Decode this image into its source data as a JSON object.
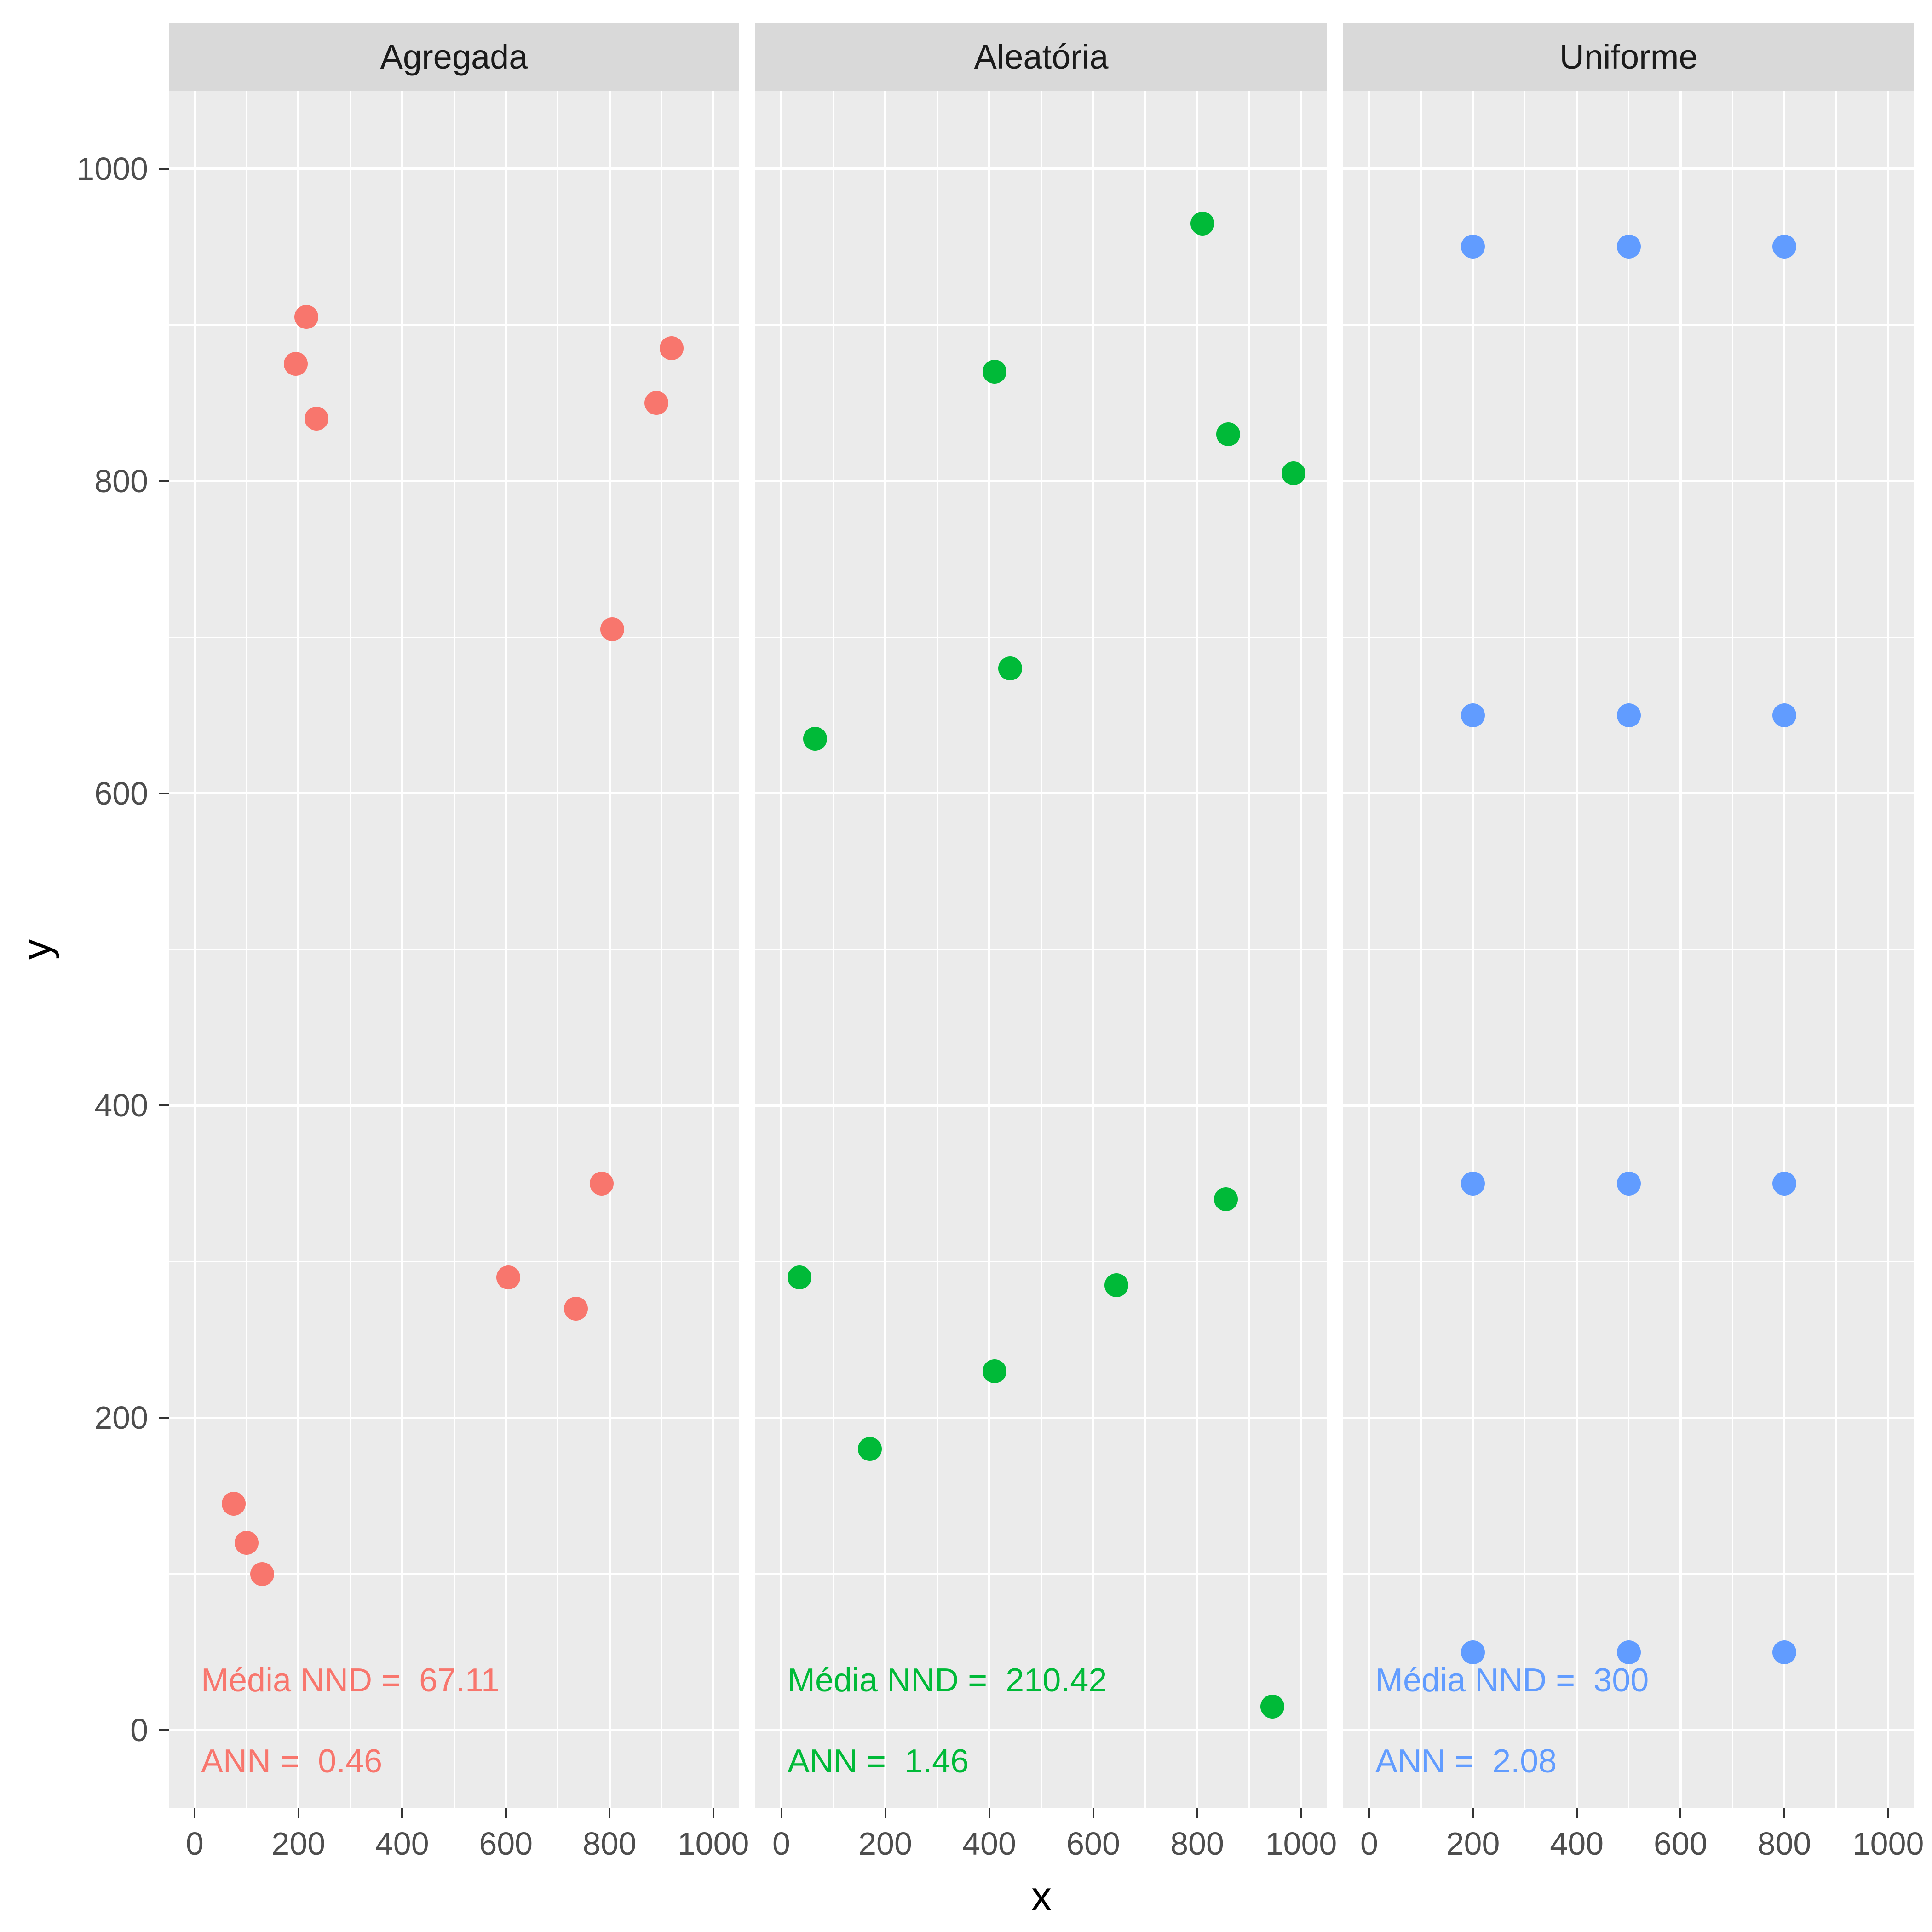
{
  "chart_data": {
    "type": "scatter",
    "xlabel": "x",
    "ylabel": "y",
    "x_ticks": [
      0,
      200,
      400,
      600,
      800,
      1000
    ],
    "y_ticks": [
      0,
      200,
      400,
      600,
      800,
      1000
    ],
    "x_minor_ticks": [
      100,
      300,
      500,
      700,
      900
    ],
    "y_minor_ticks": [
      100,
      300,
      500,
      700,
      900
    ],
    "x_domain": [
      -50,
      1050
    ],
    "y_domain": [
      -50,
      1050
    ],
    "grid": true,
    "legend": "none",
    "facets": [
      {
        "title": "Agregada",
        "color": "#F8766D",
        "nnd": "Média NND =  67.11",
        "ann": "ANN =  0.46",
        "points": [
          [
            215,
            905
          ],
          [
            195,
            875
          ],
          [
            235,
            840
          ],
          [
            920,
            885
          ],
          [
            890,
            850
          ],
          [
            805,
            705
          ],
          [
            785,
            350
          ],
          [
            605,
            290
          ],
          [
            735,
            270
          ],
          [
            75,
            145
          ],
          [
            100,
            120
          ],
          [
            130,
            100
          ]
        ]
      },
      {
        "title": "Aleatória",
        "color": "#00BA38",
        "nnd": "Média NND =  210.42",
        "ann": "ANN =  1.46",
        "points": [
          [
            810,
            965
          ],
          [
            410,
            870
          ],
          [
            860,
            830
          ],
          [
            985,
            805
          ],
          [
            440,
            680
          ],
          [
            65,
            635
          ],
          [
            855,
            340
          ],
          [
            35,
            290
          ],
          [
            645,
            285
          ],
          [
            410,
            230
          ],
          [
            170,
            180
          ],
          [
            945,
            15
          ]
        ]
      },
      {
        "title": "Uniforme",
        "color": "#619CFF",
        "nnd": "Média NND =  300",
        "ann": "ANN =  2.08",
        "points": [
          [
            200,
            950
          ],
          [
            500,
            950
          ],
          [
            800,
            950
          ],
          [
            200,
            650
          ],
          [
            500,
            650
          ],
          [
            800,
            650
          ],
          [
            200,
            350
          ],
          [
            500,
            350
          ],
          [
            800,
            350
          ],
          [
            200,
            50
          ],
          [
            500,
            50
          ],
          [
            800,
            50
          ]
        ]
      }
    ]
  },
  "theme": {
    "panel_bg": "#EBEBEB",
    "strip_bg": "#D9D9D9",
    "grid_color": "#FFFFFF",
    "tick_label_color": "#4D4D4D",
    "strip_text_color": "#1A1A1A",
    "axis_title_color": "#000000"
  }
}
